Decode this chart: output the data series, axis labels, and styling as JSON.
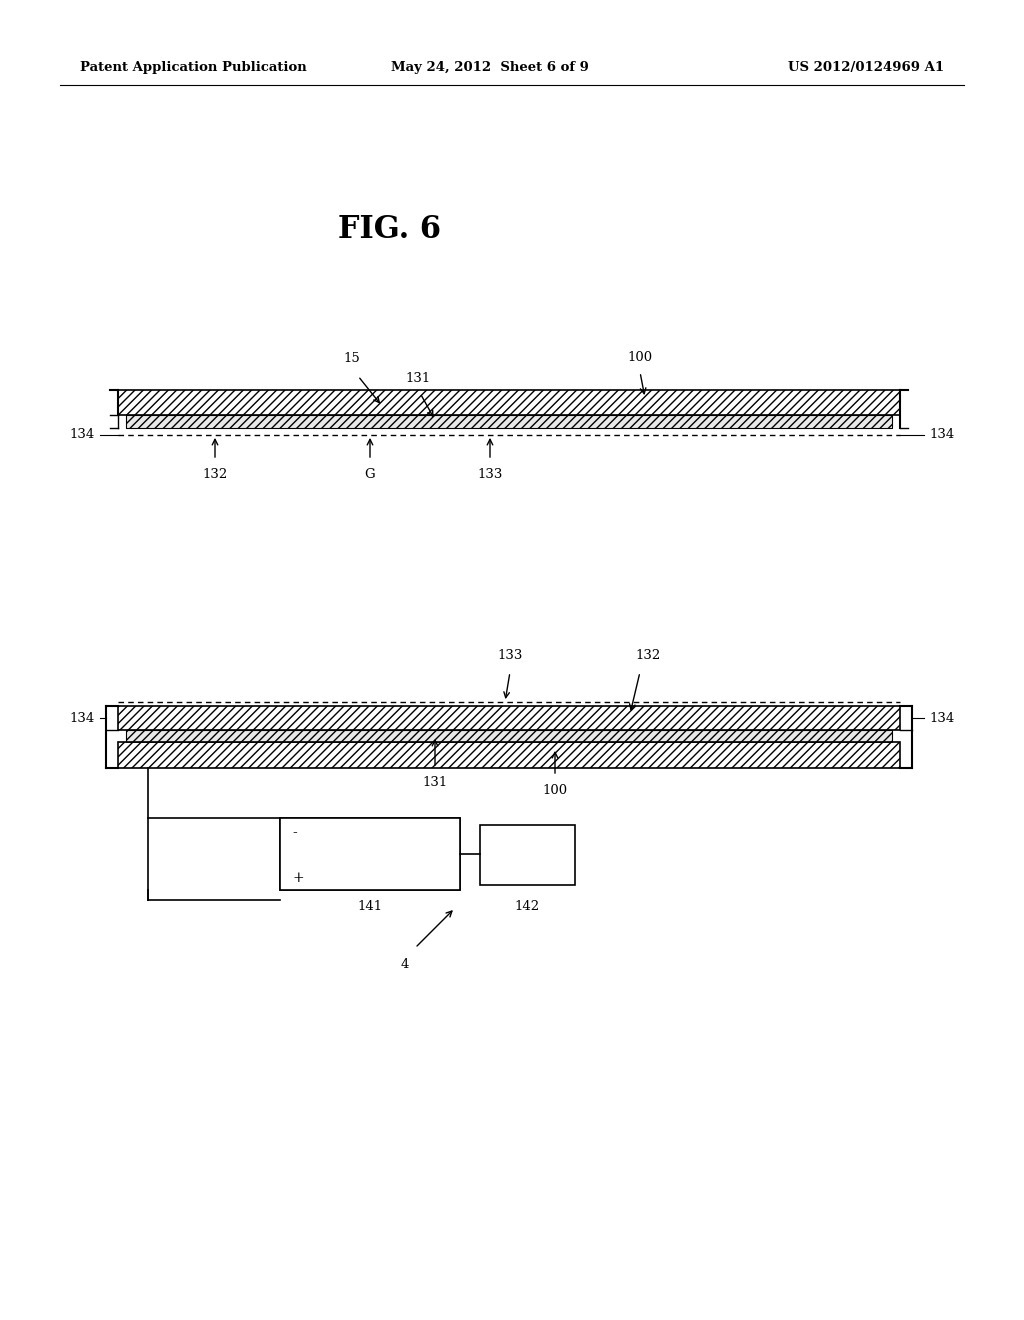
{
  "background_color": "#ffffff",
  "page_width": 10.24,
  "page_height": 13.2,
  "header_left": "Patent Application Publication",
  "header_center": "May 24, 2012  Sheet 6 of 9",
  "header_right": "US 2012/0124969 A1",
  "figure_title": "FIG. 6"
}
